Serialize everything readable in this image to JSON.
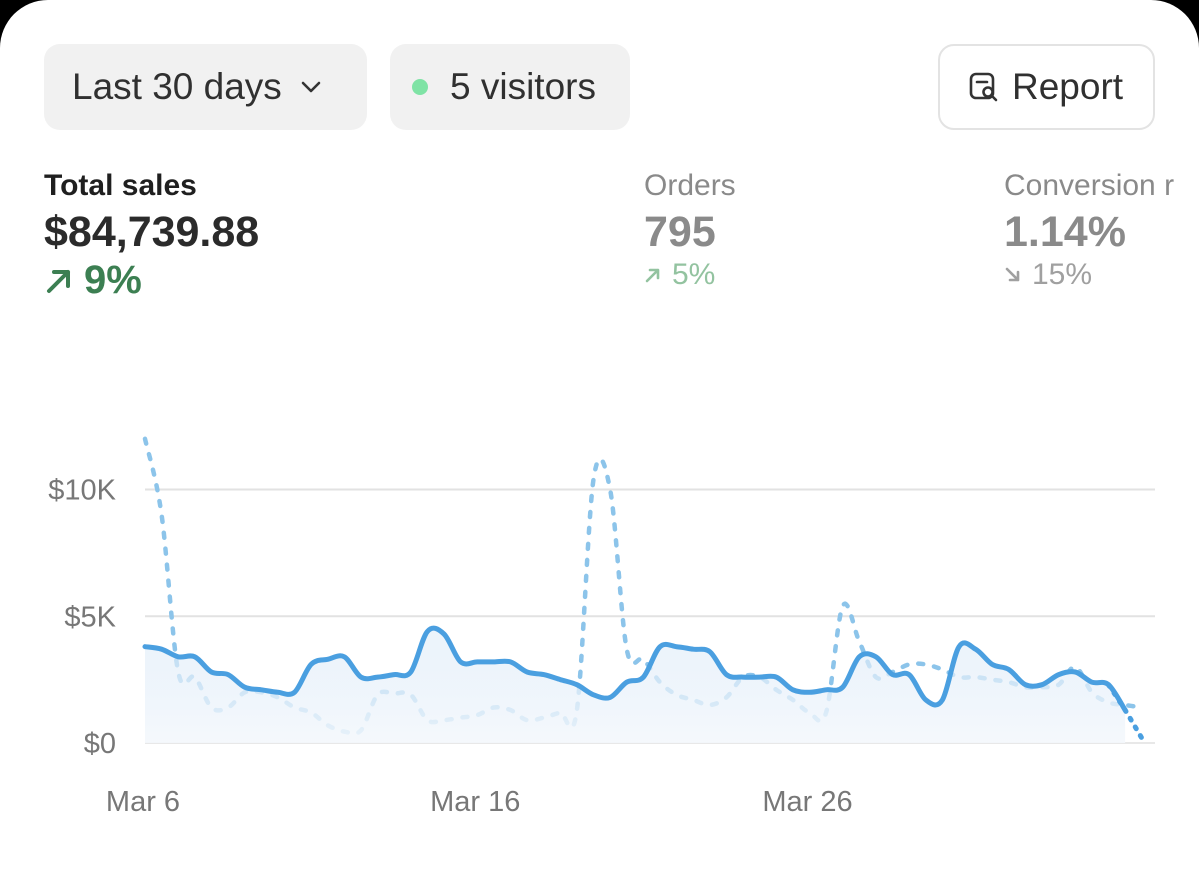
{
  "toolbar": {
    "date_range": "Last 30 days",
    "visitors": "5 visitors",
    "report": "Report",
    "icons": {
      "chevron": "chevron-down-icon",
      "live": "live-dot-icon",
      "report": "report-search-icon"
    },
    "colors": {
      "live_dot": "#7fe3a5"
    }
  },
  "metrics": {
    "sales": {
      "label": "Total sales",
      "value": "$84,739.88",
      "delta": "9%",
      "direction": "up",
      "color": "#3c7f52"
    },
    "orders": {
      "label": "Orders",
      "value": "795",
      "delta": "5%",
      "direction": "up"
    },
    "conversion": {
      "label": "Conversion r",
      "value": "1.14%",
      "delta": "15%",
      "direction": "down"
    }
  },
  "chart_data": {
    "type": "line",
    "ylim": [
      0,
      12000
    ],
    "yticks": [
      {
        "value": 0,
        "label": "$0"
      },
      {
        "value": 5000,
        "label": "$5K"
      },
      {
        "value": 10000,
        "label": "$10K"
      }
    ],
    "xticks": [
      {
        "value": 0,
        "label": "Mar 6"
      },
      {
        "value": 10,
        "label": "Mar 16"
      },
      {
        "value": 20,
        "label": "Mar 26"
      }
    ],
    "xlim": [
      0,
      30.4
    ],
    "grid": true,
    "series": [
      {
        "style": "solid",
        "color": "#4a9fe0",
        "fill": true,
        "x": [
          0,
          0.5,
          1,
          1.5,
          2,
          2.5,
          3,
          3.5,
          4,
          4.5,
          5,
          5.5,
          6,
          6.5,
          7,
          7.5,
          8,
          8.5,
          9,
          9.5,
          10,
          10.5,
          11,
          11.5,
          12,
          12.5,
          13,
          13.5,
          14,
          14.5,
          15,
          15.5,
          16,
          16.5,
          17,
          17.5,
          18,
          18.5,
          19,
          19.5,
          20,
          20.5,
          21,
          21.5,
          22,
          22.5,
          23,
          23.5,
          24,
          24.5,
          25,
          25.5,
          26,
          26.5,
          27,
          27.5,
          28,
          28.5,
          29,
          29.5,
          30
        ],
        "values": [
          3800,
          3700,
          3400,
          3400,
          2800,
          2700,
          2200,
          2100,
          2000,
          2000,
          3100,
          3300,
          3400,
          2600,
          2600,
          2700,
          2800,
          4400,
          4300,
          3200,
          3200,
          3200,
          3200,
          2800,
          2700,
          2500,
          2300,
          1900,
          1800,
          2400,
          2600,
          3800,
          3800,
          3700,
          3600,
          2700,
          2600,
          2600,
          2600,
          2100,
          2000,
          2100,
          2200,
          3400,
          3400,
          2700,
          2700,
          1700,
          1700,
          3800,
          3700,
          3100,
          2900,
          2300,
          2300,
          2700,
          2800,
          2400,
          2300,
          1300,
          200
        ]
      },
      {
        "style": "dotted",
        "color": "#8cc4ea",
        "fill": false,
        "x": [
          0,
          0.5,
          1,
          1.5,
          2,
          2.5,
          3,
          3.5,
          4,
          4.5,
          5,
          5.5,
          6,
          6.5,
          7,
          7.5,
          8,
          8.5,
          9,
          9.5,
          10,
          10.5,
          11,
          11.5,
          12,
          12.5,
          13,
          13.5,
          14,
          14.5,
          15,
          15.5,
          16,
          16.5,
          17,
          17.5,
          18,
          18.5,
          19,
          19.5,
          20,
          20.5,
          21,
          21.5,
          22,
          22.5,
          23,
          23.5,
          24,
          24.5,
          25,
          25.5,
          26,
          26.5,
          27,
          27.5,
          28,
          28.5,
          29,
          29.5,
          30
        ],
        "values": [
          12000,
          9000,
          2800,
          2600,
          1400,
          1400,
          2000,
          2000,
          1800,
          1400,
          1200,
          700,
          450,
          500,
          1900,
          1950,
          1900,
          900,
          900,
          1000,
          1100,
          1400,
          1300,
          900,
          1000,
          1200,
          1300,
          10400,
          10000,
          3700,
          3300,
          2400,
          1900,
          1700,
          1500,
          1800,
          2600,
          2600,
          2100,
          1700,
          1200,
          1200,
          5400,
          4000,
          2600,
          2800,
          3100,
          3100,
          2900,
          2600,
          2600,
          2500,
          2400,
          2200,
          2200,
          2300,
          3000,
          2000,
          1600,
          1500,
          1400
        ]
      }
    ]
  }
}
